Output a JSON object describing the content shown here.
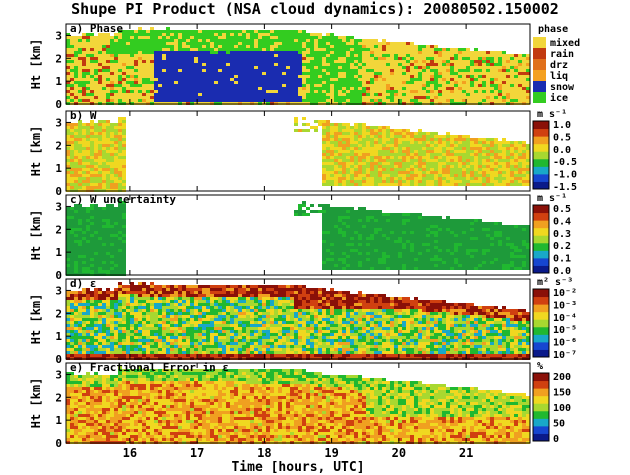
{
  "title": "Shupe PI Product (NSA cloud dynamics): 20080502.150002",
  "xlabel": "Time [hours, UTC]",
  "chart_data": [
    {
      "type": "heatmap",
      "label": "a) Phase",
      "ylabel": "Ht [km]",
      "ylim": [
        0,
        3.5
      ],
      "yticks": [
        0,
        1,
        2,
        3
      ],
      "xlim": [
        15.05,
        21.95
      ],
      "xticks": [
        16,
        17,
        18,
        19,
        20,
        21
      ],
      "legend_title": "phase",
      "categories": [
        {
          "label": "mixed",
          "color": "#f2d63a"
        },
        {
          "label": "rain",
          "color": "#c23a10"
        },
        {
          "label": "drz",
          "color": "#e0701c"
        },
        {
          "label": "liq",
          "color": "#f4a020"
        },
        {
          "label": "snow",
          "color": "#1a2cb0"
        },
        {
          "label": "ice",
          "color": "#33cc20"
        }
      ]
    },
    {
      "type": "heatmap",
      "label": "b) W",
      "ylabel": "Ht [km]",
      "ylim": [
        0,
        3.5
      ],
      "yticks": [
        0,
        1,
        2,
        3
      ],
      "xlim": [
        15.05,
        21.95
      ],
      "units": "m s⁻¹",
      "colorbar_ticks": [
        "1.0",
        "0.5",
        "0.0",
        "-0.5",
        "-1.0",
        "-1.5"
      ],
      "colormap": [
        "#0a1a8a",
        "#1646d0",
        "#18a8c8",
        "#20b830",
        "#a8d830",
        "#f0d820",
        "#f0a020",
        "#d04010",
        "#8a1008"
      ]
    },
    {
      "type": "heatmap",
      "label": "c) W uncertainty",
      "ylabel": "Ht [km]",
      "ylim": [
        0,
        3.5
      ],
      "yticks": [
        0,
        1,
        2,
        3
      ],
      "xlim": [
        15.05,
        21.95
      ],
      "units": "m s⁻¹",
      "colorbar_ticks": [
        "0.5",
        "0.4",
        "0.3",
        "0.2",
        "0.1",
        "0.0"
      ],
      "colormap": [
        "#0a1a8a",
        "#1646d0",
        "#18a8c8",
        "#20b830",
        "#a8d830",
        "#f0d820",
        "#f0a020",
        "#d04010",
        "#8a1008"
      ]
    },
    {
      "type": "heatmap",
      "label": "d) ε",
      "ylabel": "Ht [km]",
      "ylim": [
        0,
        3.5
      ],
      "yticks": [
        0,
        1,
        2,
        3
      ],
      "xlim": [
        15.05,
        21.95
      ],
      "units": "m² s⁻³",
      "colorbar_ticks": [
        "10⁻²",
        "10⁻³",
        "10⁻⁴",
        "10⁻⁵",
        "10⁻⁶",
        "10⁻⁷"
      ],
      "colormap": [
        "#0a1a8a",
        "#1646d0",
        "#18a8c8",
        "#20b830",
        "#a8d830",
        "#f0d820",
        "#f0a020",
        "#d04010",
        "#8a1008"
      ]
    },
    {
      "type": "heatmap",
      "label": "e) Fractional Error in ε",
      "ylabel": "Ht [km]",
      "ylim": [
        0,
        3.5
      ],
      "yticks": [
        0,
        1,
        2,
        3
      ],
      "xlim": [
        15.05,
        21.95
      ],
      "xticks": [
        16,
        17,
        18,
        19,
        20,
        21
      ],
      "units": "%",
      "colorbar_ticks": [
        "200",
        "150",
        "100",
        "50",
        "0"
      ],
      "colormap": [
        "#0a1a8a",
        "#1646d0",
        "#18a8c8",
        "#20b830",
        "#a8d830",
        "#f0d820",
        "#f0a020",
        "#d04010",
        "#8a1008"
      ]
    }
  ]
}
